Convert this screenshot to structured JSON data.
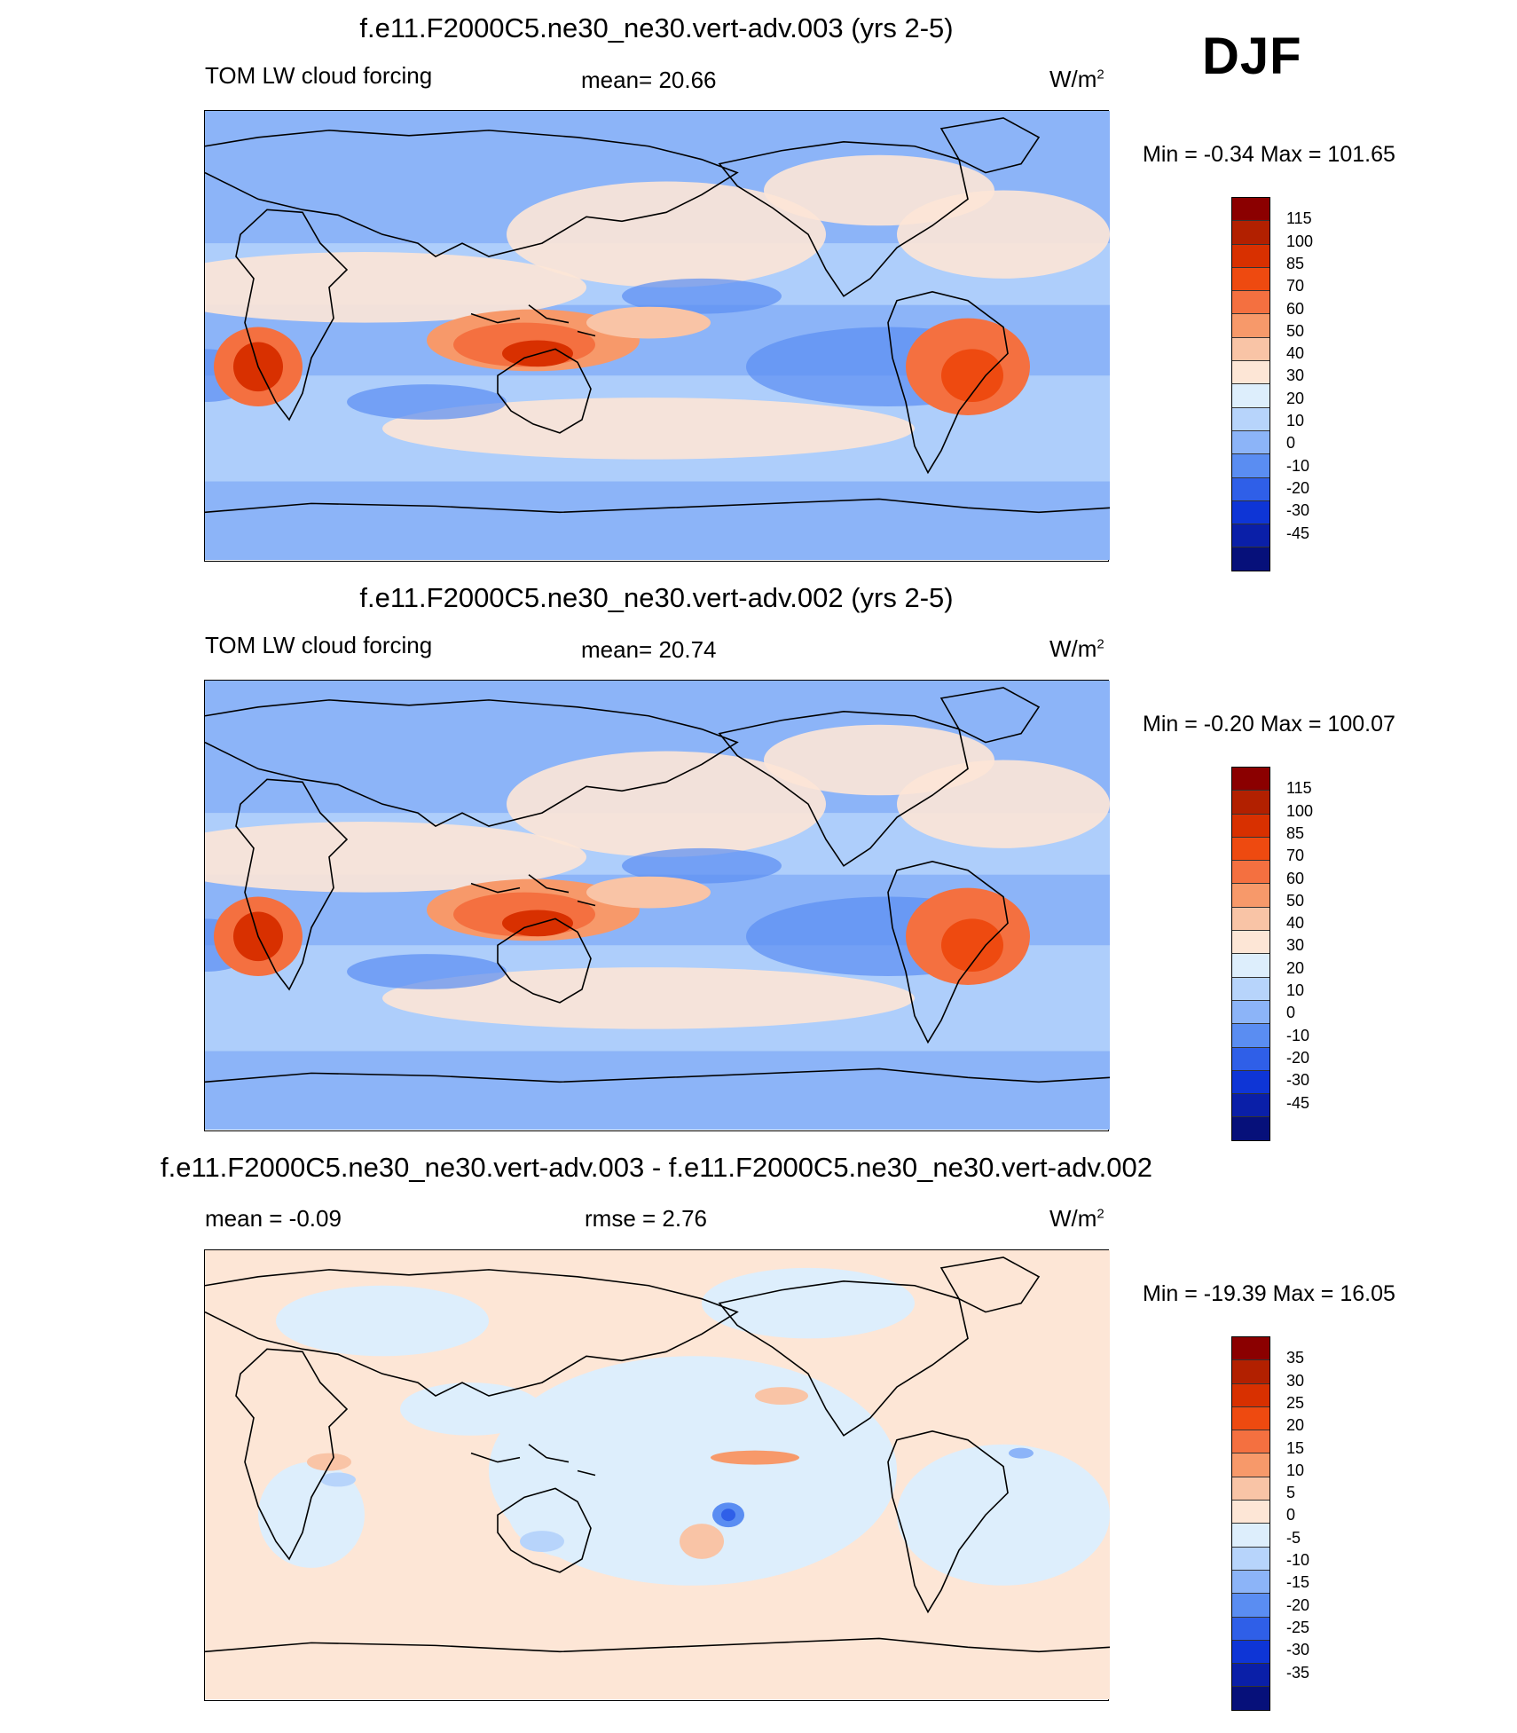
{
  "season": "DJF",
  "panels": [
    {
      "title": "f.e11.F2000C5.ne30_ne30.vert-adv.003 (yrs 2-5)",
      "left_label": "TOM LW cloud forcing",
      "center_label": "mean=  20.66",
      "units": "W/m",
      "units_sup": "2",
      "minmax": "Min =  -0.34 Max = 101.65",
      "map_variant": "mean"
    },
    {
      "title": "f.e11.F2000C5.ne30_ne30.vert-adv.002 (yrs 2-5)",
      "left_label": "TOM LW cloud forcing",
      "center_label": "mean=  20.74",
      "units": "W/m",
      "units_sup": "2",
      "minmax": "Min =  -0.20 Max = 100.07",
      "map_variant": "mean"
    },
    {
      "title": "f.e11.F2000C5.ne30_ne30.vert-adv.003 - f.e11.F2000C5.ne30_ne30.vert-adv.002",
      "left_label": "mean =  -0.09",
      "center_label": "rmse =   2.76",
      "units": "W/m",
      "units_sup": "2",
      "minmax": "Min = -19.39 Max =  16.05",
      "map_variant": "diff"
    }
  ],
  "colorbars": {
    "mean": {
      "labels": [
        "115",
        "100",
        "85",
        "70",
        "60",
        "50",
        "40",
        "30",
        "20",
        "10",
        "0",
        "-10",
        "-20",
        "-30",
        "-45"
      ],
      "colors": [
        "#8b0000",
        "#b22000",
        "#d83000",
        "#ee4a10",
        "#f47040",
        "#f7996a",
        "#f9c4a6",
        "#fde6d6",
        "#ddeefc",
        "#b7d4fb",
        "#8cb4f8",
        "#5a8df2",
        "#2f5fe8",
        "#0e35d6",
        "#0a1fa8",
        "#06107a"
      ]
    },
    "diff": {
      "labels": [
        "35",
        "30",
        "25",
        "20",
        "15",
        "10",
        "5",
        "0",
        "-5",
        "-10",
        "-15",
        "-20",
        "-25",
        "-30",
        "-35"
      ],
      "colors": [
        "#8b0000",
        "#b22000",
        "#d83000",
        "#ee4a10",
        "#f47040",
        "#f7996a",
        "#f9c4a6",
        "#fde6d6",
        "#ddeefc",
        "#b7d4fb",
        "#8cb4f8",
        "#5a8df2",
        "#2f5fe8",
        "#0e35d6",
        "#0a1fa8",
        "#06107a"
      ]
    }
  }
}
